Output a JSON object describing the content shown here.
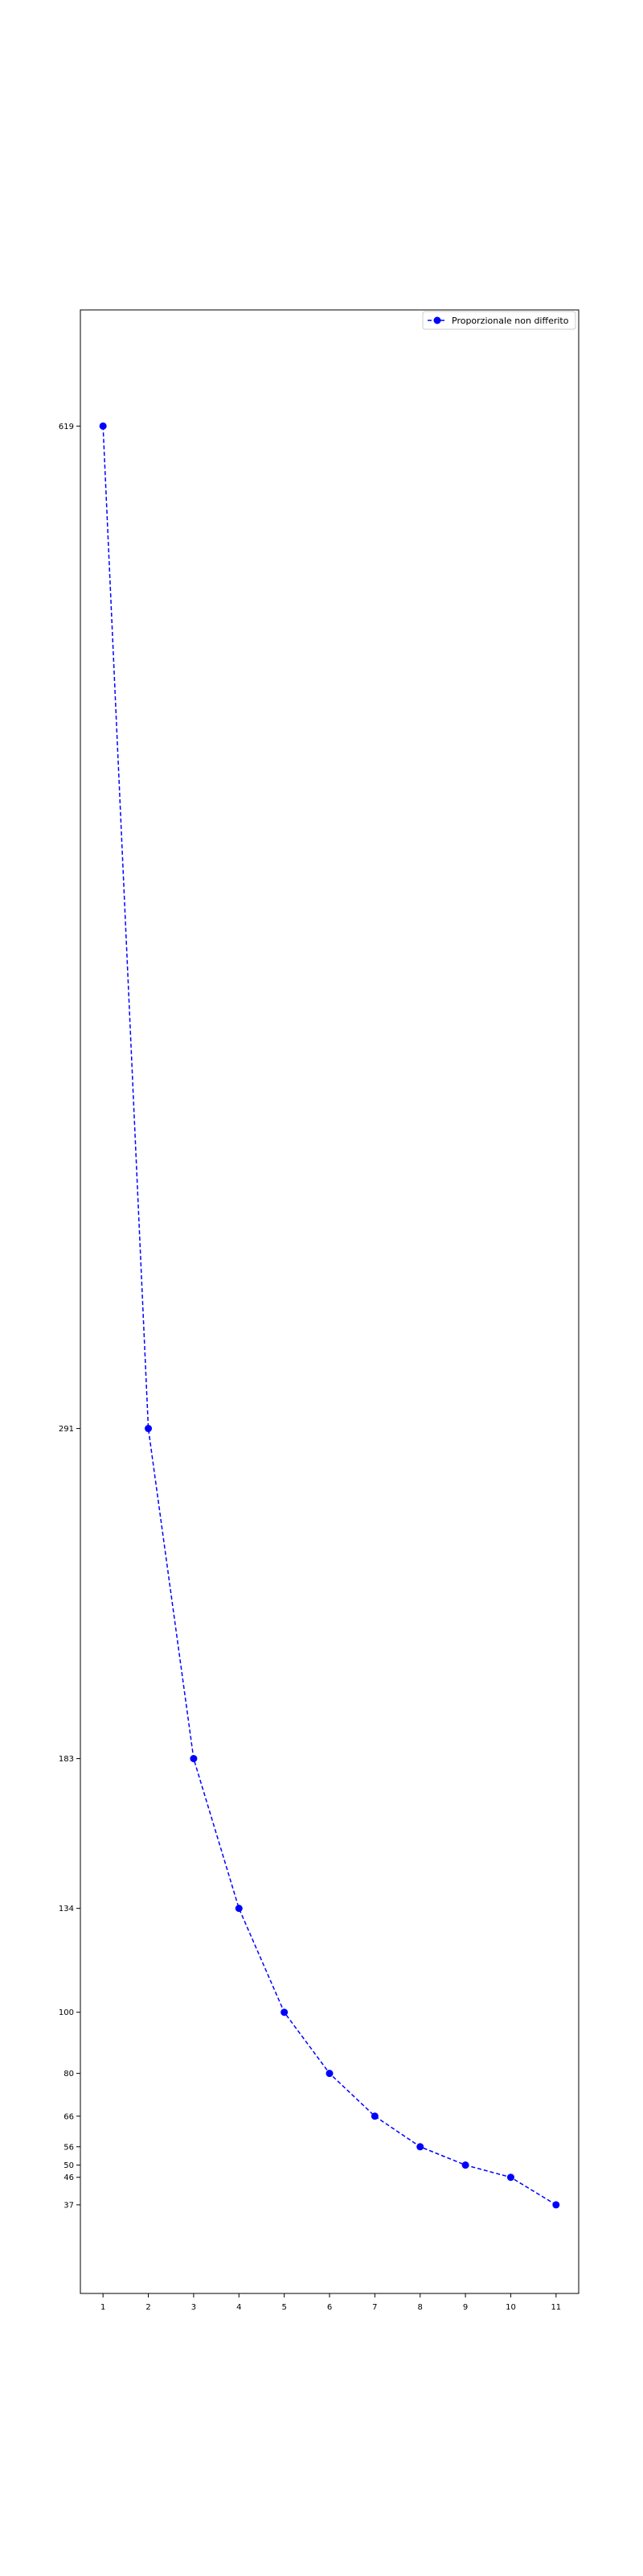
{
  "chart_data": {
    "type": "line",
    "title": "",
    "xlabel": "",
    "ylabel": "",
    "x": [
      1,
      2,
      3,
      4,
      5,
      6,
      7,
      8,
      9,
      10,
      11
    ],
    "xticks": [
      "1",
      "2",
      "3",
      "4",
      "5",
      "6",
      "7",
      "8",
      "9",
      "10",
      "11"
    ],
    "yticks": [
      619,
      291,
      183,
      134,
      100,
      80,
      66,
      56,
      50,
      46,
      37
    ],
    "xlim": [
      0.5,
      11.5
    ],
    "ylim": [
      8,
      657
    ],
    "grid": false,
    "legend_position": "top-right",
    "series": [
      {
        "name": "Proporzionale non differito",
        "color": "#0000ff",
        "marker": "circle",
        "linestyle": "dashed",
        "values": [
          619,
          291,
          183,
          134,
          100,
          80,
          66,
          56,
          50,
          46,
          37
        ]
      }
    ]
  }
}
